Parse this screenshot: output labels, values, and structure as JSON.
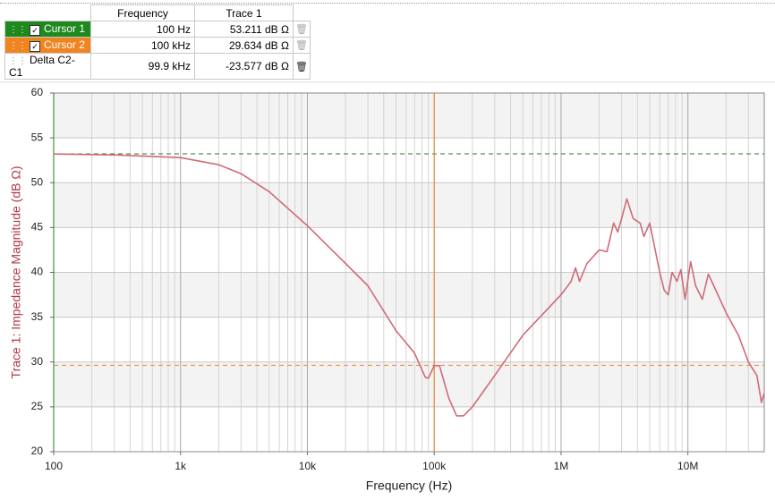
{
  "table": {
    "headers": [
      "Frequency",
      "Trace 1"
    ],
    "rows": [
      {
        "name": "Cursor 1",
        "color": "#1e8a1e",
        "frequency": "100 Hz",
        "trace": "53.211 dB Ω",
        "checked": true
      },
      {
        "name": "Cursor 2",
        "color": "#f08420",
        "frequency": "100 kHz",
        "trace": "29.634 dB Ω",
        "checked": true
      },
      {
        "name": "Delta C2-C1",
        "frequency": "99.9 kHz",
        "trace": "-23.577 dB Ω"
      }
    ]
  },
  "chart_data": {
    "type": "line",
    "xlabel": "Frequency (Hz)",
    "ylabel": "Trace 1: Impedance Magnitude (dB Ω)",
    "log_x": true,
    "grid": true,
    "minor_grid": true,
    "xlim": [
      100,
      40000000
    ],
    "ylim": [
      20,
      60
    ],
    "xticks": [
      {
        "value": 100,
        "label": "100"
      },
      {
        "value": 1000,
        "label": "1k"
      },
      {
        "value": 10000,
        "label": "10k"
      },
      {
        "value": 100000,
        "label": "100k"
      },
      {
        "value": 1000000,
        "label": "1M"
      },
      {
        "value": 10000000,
        "label": "10M"
      }
    ],
    "yticks": [
      20,
      25,
      30,
      35,
      40,
      45,
      50,
      55,
      60
    ],
    "cursors": [
      {
        "x": 100,
        "y": 53.211,
        "color": "#2a7a2a"
      },
      {
        "x": 100000,
        "y": 29.634,
        "color": "#f08420"
      }
    ],
    "series": [
      {
        "name": "Trace 1",
        "color": "#d06a78",
        "x": [
          100,
          300,
          1000,
          2000,
          3000,
          5000,
          10000,
          20000,
          30000,
          50000,
          70000,
          85000,
          90000,
          100000,
          110000,
          130000,
          150000,
          170000,
          200000,
          300000,
          500000,
          1000000,
          1200000,
          1300000,
          1400000,
          1600000,
          2000000,
          2300000,
          2600000,
          2800000,
          3000000,
          3300000,
          3700000,
          4200000,
          4500000,
          5000000,
          6000000,
          6500000,
          7000000,
          7500000,
          8200000,
          8800000,
          9500000,
          10500000,
          11500000,
          13000000,
          14500000,
          16000000,
          20000000,
          25000000,
          30000000,
          35000000,
          38000000,
          40000000
        ],
        "values": [
          53.2,
          53.1,
          52.8,
          52,
          51,
          49,
          45.2,
          41,
          38.5,
          33.5,
          31,
          28.3,
          28.2,
          29.6,
          29.6,
          26,
          24,
          24,
          25,
          28.5,
          33,
          37.5,
          39,
          40.5,
          39,
          41,
          42.5,
          42.3,
          45.5,
          44.5,
          46,
          48.2,
          46,
          45.5,
          44,
          45.5,
          40,
          38,
          37.5,
          40,
          39,
          40.3,
          37,
          41.2,
          38.5,
          37,
          39.8,
          38.5,
          35.5,
          33,
          30,
          28.5,
          25.5,
          26.5
        ]
      }
    ]
  }
}
